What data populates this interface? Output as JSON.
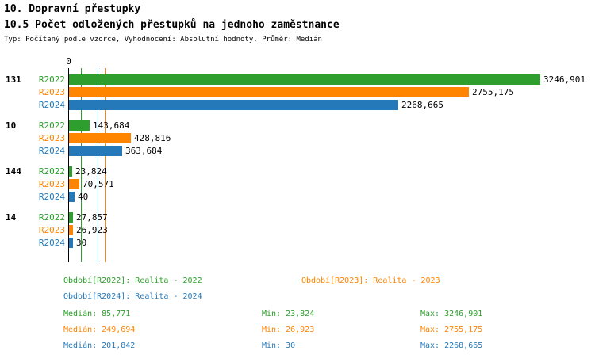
{
  "header": {
    "title1": "10. Dopravní přestupky",
    "title2": "10.5 Počet odložených přestupků na jednoho zaměstnance",
    "meta": "Typ: Počítaný podle vzorce, Vyhodnocení: Absolutní hodnoty, Průměr: Medián"
  },
  "colors": {
    "R2022": "#2e9e2e",
    "R2023": "#ff8400",
    "R2024": "#2679b8",
    "axis": "#000000"
  },
  "chart_data": {
    "type": "bar",
    "orientation": "horizontal",
    "series_names": [
      "R2022",
      "R2023",
      "R2024"
    ],
    "axis": {
      "zero_label": "0",
      "xmax": 3246.901
    },
    "groups": [
      {
        "label": "131",
        "values": [
          3246.901,
          2755.175,
          2268.665
        ],
        "value_labels": [
          "3246,901",
          "2755,175",
          "2268,665"
        ]
      },
      {
        "label": "10",
        "values": [
          143.684,
          428.816,
          363.684
        ],
        "value_labels": [
          "143,684",
          "428,816",
          "363,684"
        ]
      },
      {
        "label": "144",
        "values": [
          23.824,
          70.571,
          40
        ],
        "value_labels": [
          "23,824",
          "70,571",
          "40"
        ]
      },
      {
        "label": "14",
        "values": [
          27.857,
          26.923,
          30
        ],
        "value_labels": [
          "27,857",
          "26,923",
          "30"
        ]
      }
    ],
    "median_lines": [
      {
        "series": "R2022",
        "value": 85.771
      },
      {
        "series": "R2023",
        "value": 249.694
      },
      {
        "series": "R2024",
        "value": 201.842
      }
    ]
  },
  "legend": [
    {
      "series": "R2022",
      "label": "Období[R2022]: Realita - 2022"
    },
    {
      "series": "R2023",
      "label": "Období[R2023]: Realita - 2023"
    },
    {
      "series": "R2024",
      "label": "Období[R2024]: Realita - 2024"
    }
  ],
  "stats": [
    {
      "series": "R2022",
      "median": "Medián: 85,771",
      "min": "Min: 23,824",
      "max": "Max: 3246,901"
    },
    {
      "series": "R2023",
      "median": "Medián: 249,694",
      "min": "Min: 26,923",
      "max": "Max: 2755,175"
    },
    {
      "series": "R2024",
      "median": "Medián: 201,842",
      "min": "Min: 30",
      "max": "Max: 2268,665"
    }
  ]
}
